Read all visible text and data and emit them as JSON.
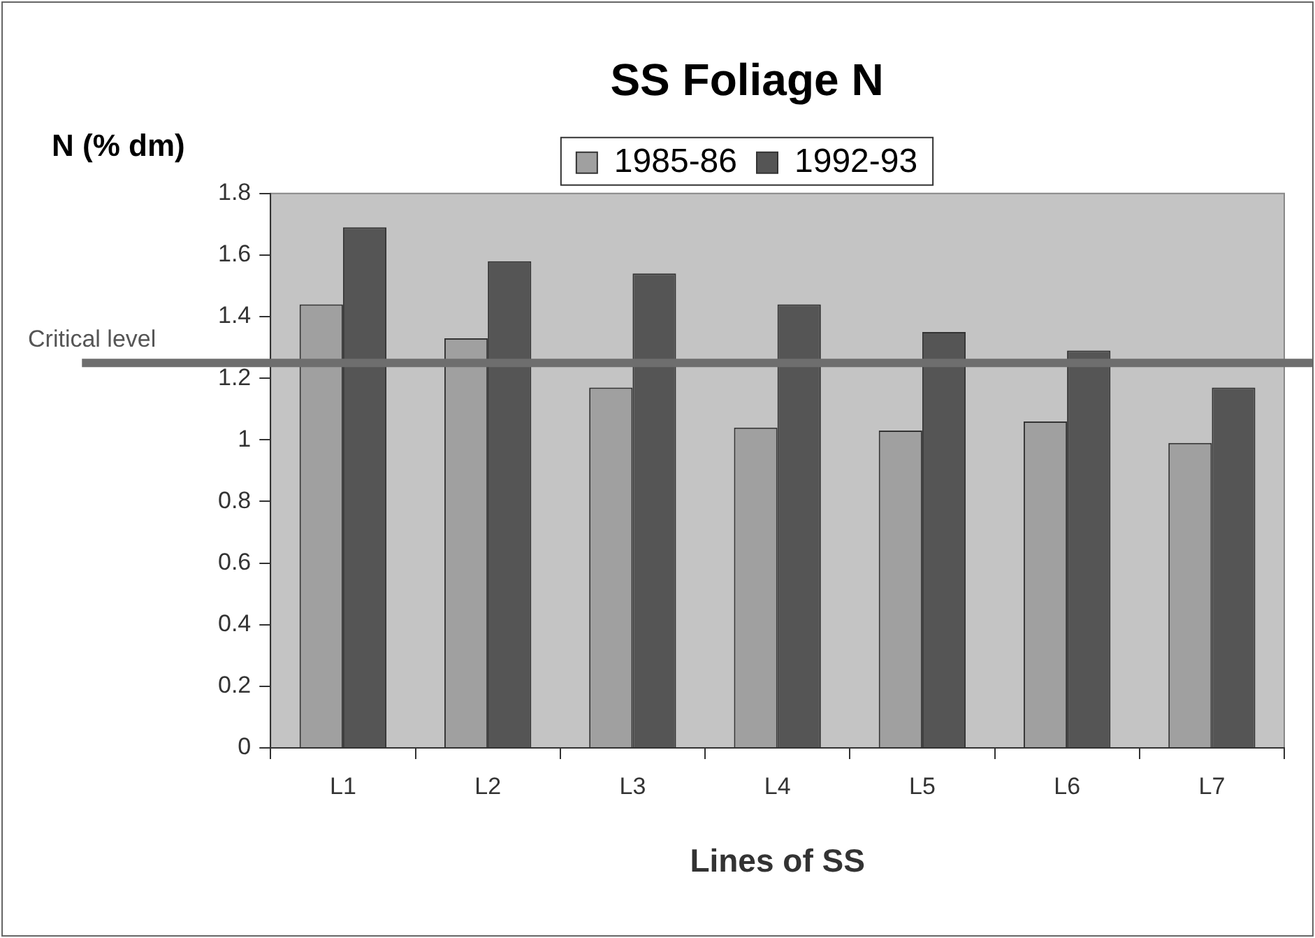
{
  "chart_data": {
    "type": "bar",
    "title": "SS Foliage N",
    "xlabel": "Lines of SS",
    "ylabel": "N (% dm)",
    "categories": [
      "L1",
      "L2",
      "L3",
      "L4",
      "L5",
      "L6",
      "L7"
    ],
    "series": [
      {
        "name": "1985-86",
        "color": "#a0a0a0",
        "values": [
          1.44,
          1.33,
          1.17,
          1.04,
          1.03,
          1.06,
          0.99
        ]
      },
      {
        "name": "1992-93",
        "color": "#555555",
        "values": [
          1.69,
          1.58,
          1.54,
          1.44,
          1.35,
          1.29,
          1.17
        ]
      }
    ],
    "ylim": [
      0,
      1.8
    ],
    "yticks": [
      0,
      0.2,
      0.4,
      0.6,
      0.8,
      1,
      1.2,
      1.4,
      1.6,
      1.8
    ],
    "ref_lines": [
      {
        "axis": "y",
        "value": 1.25,
        "label": "Critical level",
        "color": "#6e6e6e"
      }
    ],
    "grid": false,
    "legend": "top"
  }
}
